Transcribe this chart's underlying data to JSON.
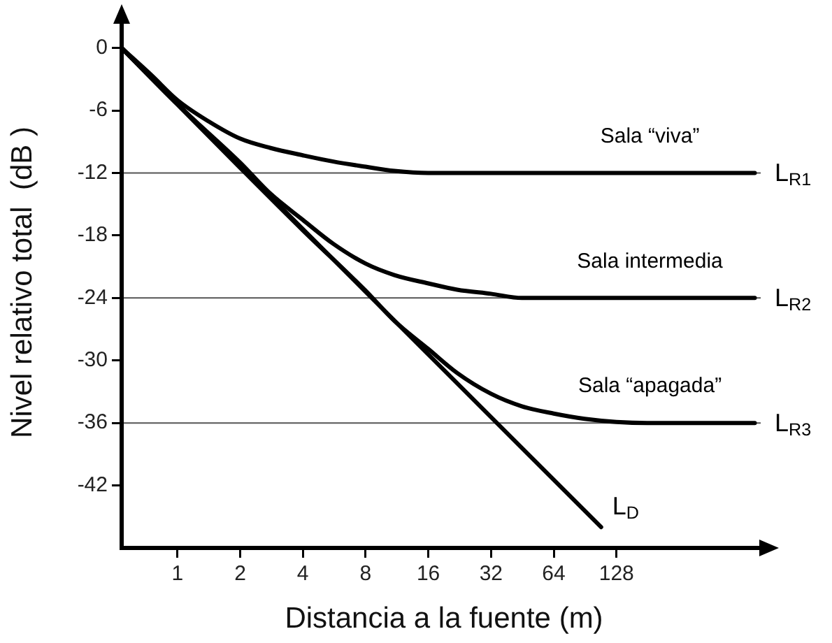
{
  "chart_data": {
    "type": "line",
    "xlabel": "Distancia a la fuente (m)",
    "ylabel": "Nivel relativo total  (dB )",
    "log": "x",
    "xlim": [
      0.54,
      670
    ],
    "ylim": [
      -48,
      3
    ],
    "xticks": [
      1,
      2,
      4,
      8,
      16,
      32,
      64,
      128
    ],
    "yticks": [
      0,
      -6,
      -12,
      -18,
      -24,
      -30,
      -36,
      -42
    ],
    "grid": false,
    "legend": false,
    "marker": "none",
    "line_style": "solid",
    "series": [
      {
        "name": "L$_{D}$",
        "color": "#000000",
        "x": [
          0.54,
          108
        ],
        "values": [
          0,
          -46
        ]
      },
      {
        "name": "Sala “viva”",
        "color": "#000000",
        "x": [
          0.54,
          0.75,
          1,
          1.4,
          2,
          2.8,
          4,
          5.6,
          8,
          11,
          16,
          590
        ],
        "values": [
          0,
          -2.6,
          -5,
          -7,
          -8.7,
          -9.6,
          -10.3,
          -10.9,
          -11.4,
          -11.8,
          -12,
          -12
        ]
      },
      {
        "name": "Sala intermedia",
        "color": "#000000",
        "x": [
          0.54,
          1,
          2,
          2.8,
          4,
          5.6,
          8,
          11,
          16,
          22,
          32,
          45,
          590
        ],
        "values": [
          0,
          -5.4,
          -11,
          -14,
          -16.5,
          -18.8,
          -20.7,
          -21.8,
          -22.6,
          -23.2,
          -23.6,
          -24,
          -24
        ]
      },
      {
        "name": "Sala “apagada”",
        "color": "#000000",
        "x": [
          0.54,
          2,
          4,
          8,
          11,
          16,
          22,
          32,
          45,
          64,
          90,
          128,
          180,
          590
        ],
        "values": [
          0,
          -11.5,
          -17.5,
          -23.3,
          -26.2,
          -28.9,
          -31.2,
          -33.2,
          -34.4,
          -35.1,
          -35.6,
          -35.9,
          -36,
          -36
        ]
      }
    ],
    "ref_lines": [
      {
        "axis": "y",
        "value": -12,
        "label": "L$_{R1}$",
        "color": "#555555"
      },
      {
        "axis": "y",
        "value": -24,
        "label": "L$_{R2}$",
        "color": "#555555"
      },
      {
        "axis": "y",
        "value": -36,
        "label": "L$_{R3}$",
        "color": "#555555"
      }
    ]
  }
}
